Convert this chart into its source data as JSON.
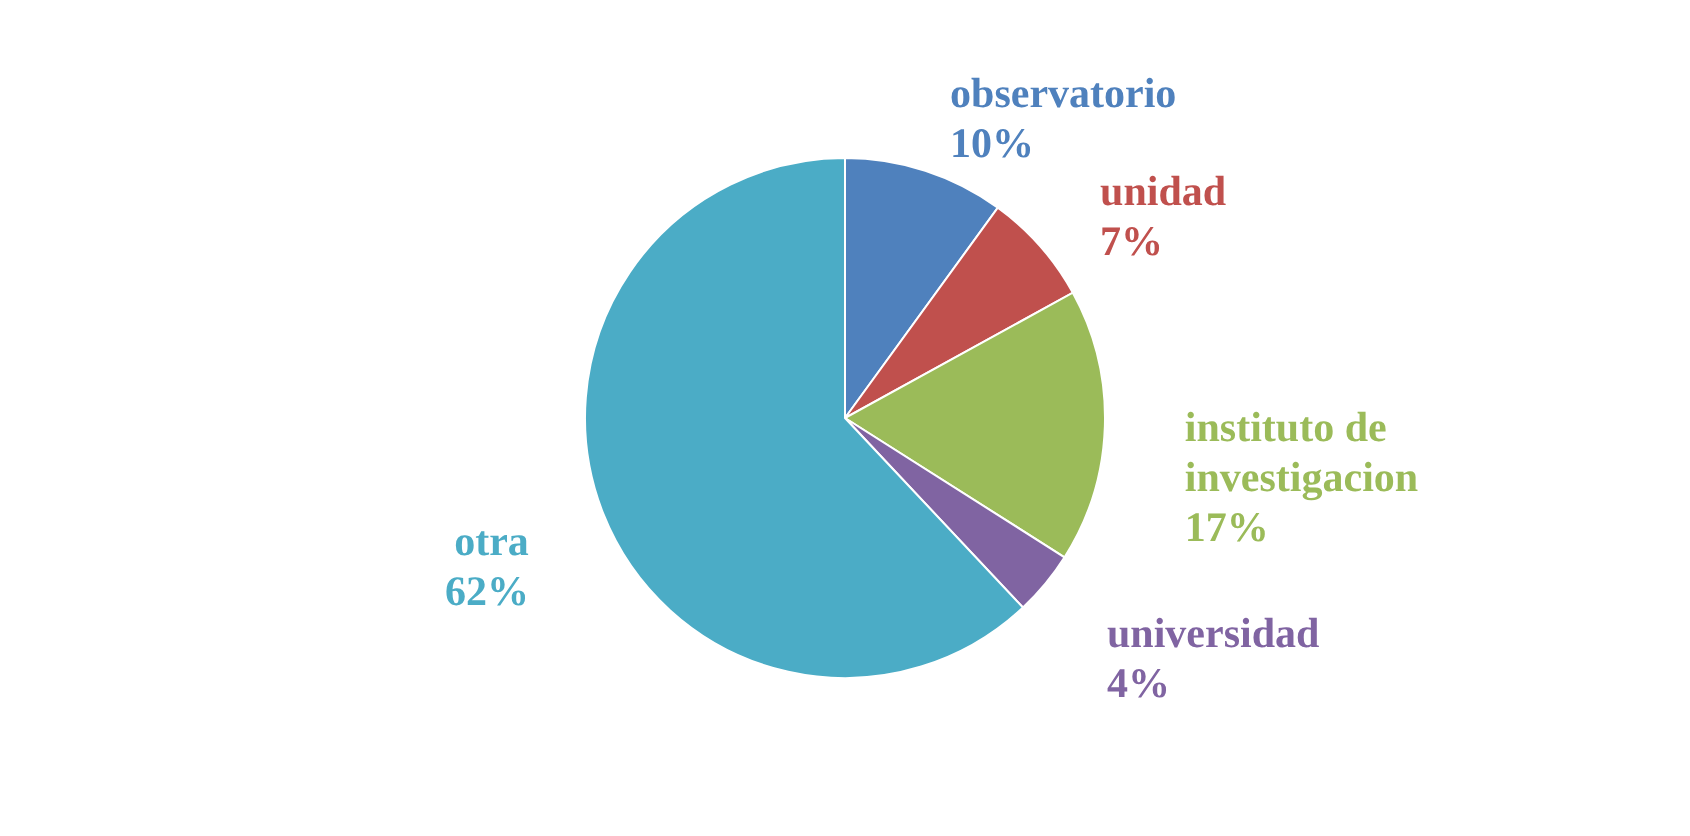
{
  "chart_data": {
    "type": "pie",
    "categories": [
      "observatorio",
      "unidad",
      "instituto de investigacion",
      "universidad",
      "otra"
    ],
    "values": [
      10,
      7,
      17,
      4,
      62
    ],
    "colors": [
      "#4f81bd",
      "#c0504d",
      "#9bbb59",
      "#8064a2",
      "#4bacc6"
    ],
    "value_labels": [
      "10%",
      "7%",
      "17%",
      "4%",
      "62%"
    ]
  }
}
